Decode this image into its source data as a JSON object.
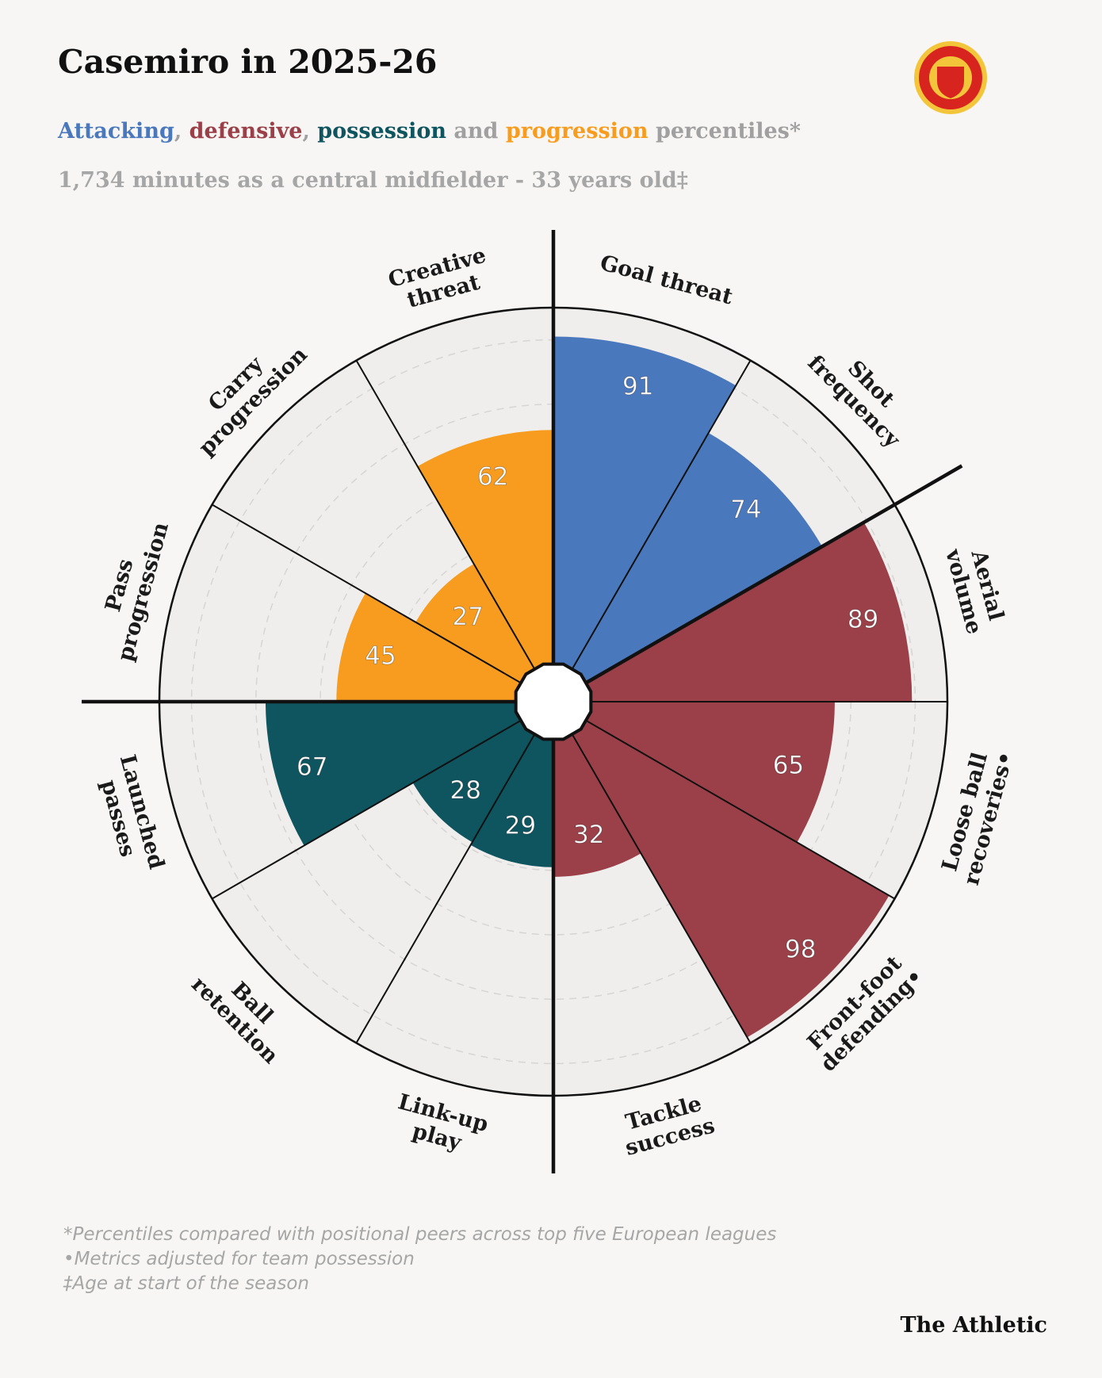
{
  "chart_data": {
    "type": "polar_bar",
    "title": "Casemiro in 2025-26",
    "subtitle_parts": [
      {
        "text": "Attacking",
        "color": "#4a78bd"
      },
      {
        "text": ", ",
        "color": "#a0a0a0"
      },
      {
        "text": "defensive",
        "color": "#9b3f48"
      },
      {
        "text": ", ",
        "color": "#a0a0a0"
      },
      {
        "text": "possession",
        "color": "#0e5560"
      },
      {
        "text": " and ",
        "color": "#a0a0a0"
      },
      {
        "text": "progression",
        "color": "#f79c1e"
      },
      {
        "text": " percentiles*",
        "color": "#a0a0a0"
      }
    ],
    "subtitle2": "1,734 minutes as a central midfielder - 33 years old‡",
    "categories": [
      "Goal threat",
      "Shot frequency",
      "Aerial volume",
      "Loose ball recoveries•",
      "Front-foot defending•",
      "Tackle success",
      "Link-up play",
      "Ball retention",
      "Launched passes",
      "Pass progression",
      "Carry progression",
      "Creative threat"
    ],
    "values": [
      91,
      74,
      89,
      65,
      98,
      32,
      29,
      28,
      67,
      45,
      27,
      62
    ],
    "colors": [
      "#4a78bd",
      "#4a78bd",
      "#9b3f48",
      "#9b3f48",
      "#9b3f48",
      "#9b3f48",
      "#0e5560",
      "#0e5560",
      "#0e5560",
      "#f79c1e",
      "#f79c1e",
      "#f79c1e"
    ],
    "rlim": [
      0,
      100
    ],
    "notes": [
      "*Percentiles compared with positional peers across top five European leagues",
      "•Metrics adjusted for team possession",
      "‡Age at start of the season"
    ],
    "source": "The Athletic"
  }
}
